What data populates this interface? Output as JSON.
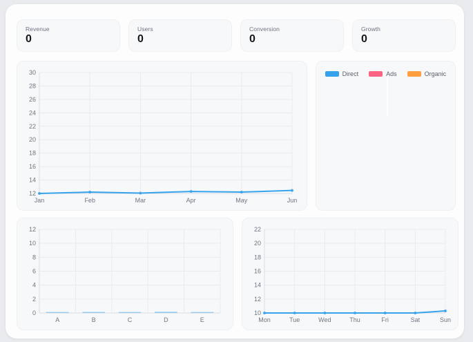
{
  "stats": [
    {
      "label": "Revenue",
      "value": "0"
    },
    {
      "label": "Users",
      "value": "0"
    },
    {
      "label": "Conversion",
      "value": "0"
    },
    {
      "label": "Growth",
      "value": "0"
    }
  ],
  "legend": {
    "items": [
      {
        "label": "Direct",
        "color": "#36A2EB"
      },
      {
        "label": "Ads",
        "color": "#FF6384"
      },
      {
        "label": "Organic",
        "color": "#FF9F40"
      }
    ]
  },
  "colors": {
    "line_blue": "#36A2EB",
    "bar_blue": "rgba(54,162,235,0.45)",
    "grid": "#e9ebef",
    "axis_border": "#d8dbe0"
  },
  "chart_data": [
    {
      "type": "line",
      "mount": "chart-main",
      "categories": [
        "Jan",
        "Feb",
        "Mar",
        "Apr",
        "May",
        "Jun"
      ],
      "values": [
        12,
        12.2,
        12.05,
        12.3,
        12.2,
        12.45
      ],
      "title": "",
      "xlabel": "",
      "ylabel": "",
      "ylim": [
        12,
        30
      ],
      "ystep": 2,
      "grid": true,
      "color": "#36A2EB"
    },
    {
      "type": "pie",
      "mount": "chart-pie",
      "labels": [
        "Direct",
        "Ads",
        "Organic"
      ],
      "values": [
        0,
        0,
        0
      ],
      "colors": [
        "#36A2EB",
        "#FF6384",
        "#FF9F40"
      ],
      "legend_position": "top"
    },
    {
      "type": "bar",
      "mount": "chart-bar",
      "categories": [
        "A",
        "B",
        "C",
        "D",
        "E"
      ],
      "values": [
        0.1,
        0.15,
        0.12,
        0.18,
        0.08
      ],
      "title": "",
      "xlabel": "",
      "ylabel": "",
      "ylim": [
        0,
        12
      ],
      "ystep": 2,
      "grid": true,
      "color": "rgba(54,162,235,0.45)"
    },
    {
      "type": "line",
      "mount": "chart-week",
      "categories": [
        "Mon",
        "Tue",
        "Wed",
        "Thu",
        "Fri",
        "Sat",
        "Sun"
      ],
      "values": [
        10,
        10,
        10,
        10,
        10,
        10,
        10.3
      ],
      "title": "",
      "xlabel": "",
      "ylabel": "",
      "ylim": [
        10,
        22
      ],
      "ystep": 2,
      "grid": true,
      "color": "#36A2EB"
    }
  ]
}
